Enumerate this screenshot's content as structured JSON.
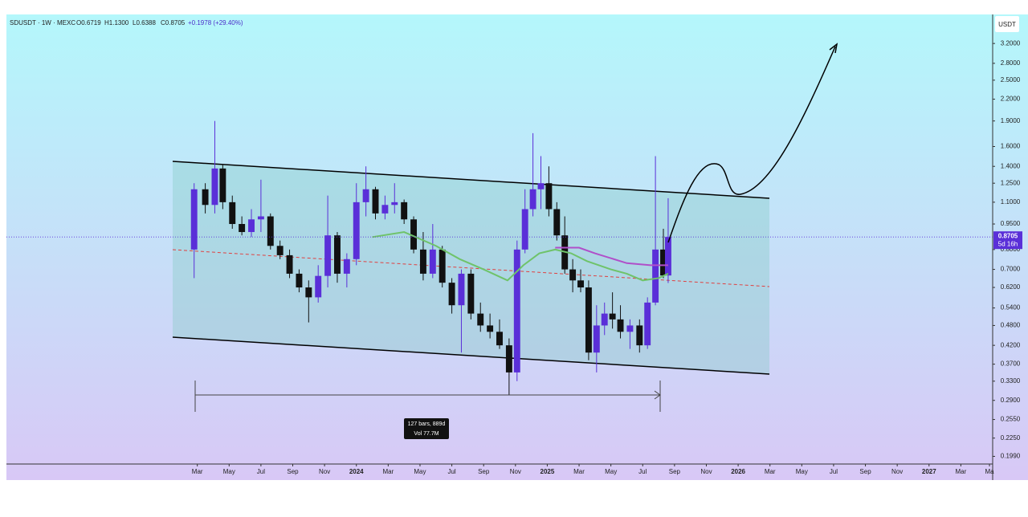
{
  "chart_data": {
    "type": "candlestick",
    "header": {
      "symbol": "SDUSDT · 1W · MEXC",
      "open": "O0.6719",
      "high": "H1.1300",
      "low": "L0.6388",
      "close": "C0.8705",
      "change": "+0.1978 (+29.40%)"
    },
    "y_unit": "USDT",
    "log_scale": true,
    "xlim": [
      -12,
      50
    ],
    "ylim": [
      0.189,
      3.89
    ],
    "xticks": [
      {
        "value": 0,
        "label": "Mar"
      },
      {
        "value": 2,
        "label": "May"
      },
      {
        "value": 4,
        "label": "Jul"
      },
      {
        "value": 6,
        "label": "Sep"
      },
      {
        "value": 8,
        "label": "Nov"
      },
      {
        "value": 10,
        "label": "2024"
      },
      {
        "value": 12,
        "label": "Mar"
      },
      {
        "value": 14,
        "label": "May"
      },
      {
        "value": 16,
        "label": "Jul"
      },
      {
        "value": 18,
        "label": "Sep"
      },
      {
        "value": 20,
        "label": "Nov"
      },
      {
        "value": 22,
        "label": "2025"
      },
      {
        "value": 24,
        "label": "Mar"
      },
      {
        "value": 26,
        "label": "May"
      },
      {
        "value": 28,
        "label": "Jul"
      },
      {
        "value": 30,
        "label": "Sep"
      },
      {
        "value": 32,
        "label": "Nov"
      },
      {
        "value": 34,
        "label": "2026"
      },
      {
        "value": 36,
        "label": "Mar"
      },
      {
        "value": 38,
        "label": "May"
      },
      {
        "value": 40,
        "label": "Jul"
      },
      {
        "value": 42,
        "label": "Sep"
      },
      {
        "value": 44,
        "label": "Nov"
      },
      {
        "value": 46,
        "label": "2027"
      },
      {
        "value": 48,
        "label": "Mar"
      },
      {
        "value": 49.8,
        "label": "Ma"
      }
    ],
    "yticks": [
      {
        "value": 3.2,
        "label": "3.2000"
      },
      {
        "value": 2.8,
        "label": "2.8000"
      },
      {
        "value": 2.5,
        "label": "2.5000"
      },
      {
        "value": 2.2,
        "label": "2.2000"
      },
      {
        "value": 1.9,
        "label": "1.9000"
      },
      {
        "value": 1.6,
        "label": "1.6000"
      },
      {
        "value": 1.4,
        "label": "1.4000"
      },
      {
        "value": 1.25,
        "label": "1.2500"
      },
      {
        "value": 1.1,
        "label": "1.1000"
      },
      {
        "value": 0.95,
        "label": "0.9500"
      },
      {
        "value": 0.8,
        "label": "0.8000"
      },
      {
        "value": 0.7,
        "label": "0.7000"
      },
      {
        "value": 0.62,
        "label": "0.6200"
      },
      {
        "value": 0.54,
        "label": "0.5400"
      },
      {
        "value": 0.48,
        "label": "0.4800"
      },
      {
        "value": 0.42,
        "label": "0.4200"
      },
      {
        "value": 0.37,
        "label": "0.3700"
      },
      {
        "value": 0.33,
        "label": "0.3300"
      },
      {
        "value": 0.29,
        "label": "0.2900"
      },
      {
        "value": 0.255,
        "label": "0.2550"
      },
      {
        "value": 0.225,
        "label": "0.2250"
      },
      {
        "value": 0.199,
        "label": "0.1990"
      }
    ],
    "up_color": "#5a2fd8",
    "down_color": "#111111",
    "candles": {
      "x": [
        -0.2,
        0.5,
        1.1,
        1.6,
        2.2,
        2.8,
        3.4,
        4.0,
        4.6,
        5.2,
        5.8,
        6.4,
        7.0,
        7.6,
        8.2,
        8.8,
        9.4,
        10.0,
        10.6,
        11.2,
        11.8,
        12.4,
        13.0,
        13.6,
        14.2,
        14.8,
        15.4,
        16.0,
        16.6,
        17.2,
        17.8,
        18.4,
        19.0,
        19.6,
        20.1,
        20.6,
        21.1,
        21.6,
        22.1,
        22.6,
        23.1,
        23.6,
        24.1,
        24.6,
        25.1,
        25.6,
        26.1,
        26.6,
        27.2,
        27.8,
        28.3,
        28.8,
        29.3,
        29.6
      ],
      "open": [
        0.8,
        1.2,
        1.08,
        1.38,
        1.1,
        0.95,
        0.9,
        0.98,
        1.0,
        0.82,
        0.77,
        0.68,
        0.62,
        0.58,
        0.67,
        0.88,
        0.68,
        0.75,
        1.1,
        1.2,
        1.02,
        1.08,
        1.1,
        0.98,
        0.8,
        0.68,
        0.8,
        0.64,
        0.55,
        0.68,
        0.52,
        0.48,
        0.46,
        0.42,
        0.35,
        0.8,
        1.05,
        1.2,
        1.25,
        1.05,
        0.88,
        0.7,
        0.65,
        0.62,
        0.4,
        0.48,
        0.52,
        0.5,
        0.46,
        0.48,
        0.42,
        0.56,
        0.8,
        0.6719
      ],
      "high": [
        1.25,
        1.25,
        1.9,
        1.42,
        1.15,
        1.0,
        1.05,
        1.28,
        1.02,
        0.85,
        0.8,
        0.7,
        0.65,
        0.72,
        1.15,
        0.9,
        0.78,
        1.25,
        1.4,
        1.22,
        1.15,
        1.25,
        1.12,
        1.0,
        0.9,
        0.95,
        0.82,
        0.66,
        0.7,
        0.7,
        0.56,
        0.52,
        0.5,
        0.44,
        0.85,
        1.2,
        1.75,
        1.5,
        1.4,
        1.1,
        1.0,
        0.75,
        0.7,
        0.65,
        0.55,
        0.56,
        0.6,
        0.55,
        0.5,
        0.5,
        0.58,
        1.5,
        0.92,
        1.13
      ],
      "low": [
        0.66,
        1.02,
        1.02,
        1.05,
        0.92,
        0.88,
        0.87,
        0.9,
        0.8,
        0.75,
        0.66,
        0.6,
        0.49,
        0.56,
        0.62,
        0.64,
        0.62,
        0.72,
        1.0,
        0.98,
        0.98,
        1.02,
        0.95,
        0.78,
        0.65,
        0.66,
        0.62,
        0.52,
        0.4,
        0.5,
        0.46,
        0.44,
        0.41,
        0.3,
        0.33,
        0.78,
        1.0,
        1.05,
        1.0,
        0.85,
        0.68,
        0.6,
        0.6,
        0.38,
        0.35,
        0.45,
        0.47,
        0.44,
        0.41,
        0.4,
        0.41,
        0.55,
        0.66,
        0.6388
      ],
      "close": [
        1.2,
        1.08,
        1.38,
        1.1,
        0.95,
        0.9,
        0.98,
        1.0,
        0.82,
        0.77,
        0.68,
        0.62,
        0.58,
        0.67,
        0.88,
        0.68,
        0.75,
        1.1,
        1.2,
        1.02,
        1.08,
        1.1,
        0.98,
        0.8,
        0.68,
        0.8,
        0.64,
        0.55,
        0.68,
        0.52,
        0.48,
        0.46,
        0.42,
        0.35,
        0.8,
        1.05,
        1.2,
        1.25,
        1.05,
        0.88,
        0.7,
        0.65,
        0.62,
        0.4,
        0.48,
        0.52,
        0.5,
        0.46,
        0.48,
        0.42,
        0.56,
        0.8,
        0.6719,
        0.8705
      ]
    },
    "series": [
      {
        "color": "#6fc36a",
        "x": [
          11,
          13,
          15,
          16.5,
          18,
          19.5,
          20.5,
          21.5,
          22.5,
          23.5,
          24.5,
          26,
          27,
          28,
          29,
          29.6
        ],
        "values": [
          0.87,
          0.9,
          0.82,
          0.75,
          0.7,
          0.65,
          0.72,
          0.78,
          0.8,
          0.78,
          0.74,
          0.7,
          0.68,
          0.65,
          0.66,
          0.68
        ]
      },
      {
        "color": "#b04fc9",
        "x": [
          22.5,
          24,
          25,
          27,
          28.5,
          29.6
        ],
        "values": [
          0.81,
          0.81,
          0.78,
          0.73,
          0.72,
          0.72
        ]
      }
    ],
    "last_price": {
      "value": 0.8705,
      "label": "0.8705"
    },
    "countdown": "5d 16h",
    "measure": {
      "bars": "127 bars, 889d",
      "volume": "Vol 77.7M"
    }
  }
}
